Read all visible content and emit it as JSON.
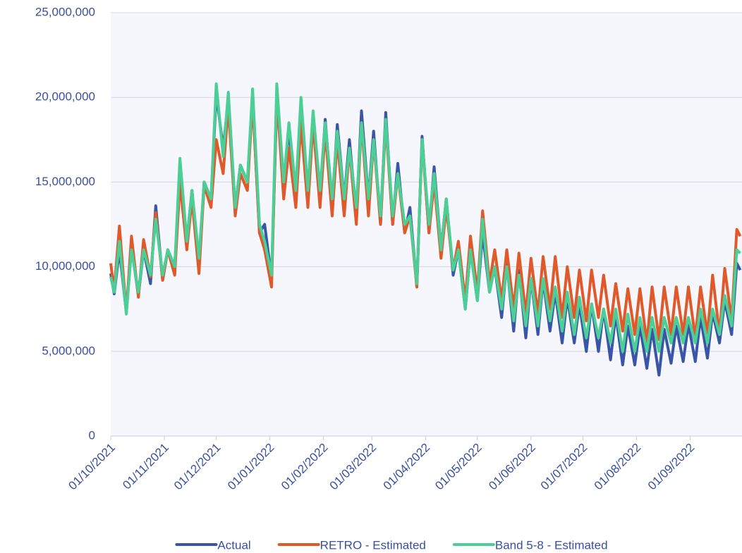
{
  "chart_data": {
    "type": "line",
    "x": [
      "01/10/2021",
      "03/10/2021",
      "06/10/2021",
      "10/10/2021",
      "13/10/2021",
      "17/10/2021",
      "20/10/2021",
      "24/10/2021",
      "27/10/2021",
      "31/10/2021",
      "03/11/2021",
      "07/11/2021",
      "10/11/2021",
      "14/11/2021",
      "17/11/2021",
      "21/11/2021",
      "24/11/2021",
      "28/11/2021",
      "01/12/2021",
      "05/12/2021",
      "08/12/2021",
      "12/12/2021",
      "15/12/2021",
      "19/12/2021",
      "22/12/2021",
      "26/12/2021",
      "29/12/2021",
      "02/01/2022",
      "05/01/2022",
      "09/01/2022",
      "12/01/2022",
      "16/01/2022",
      "19/01/2022",
      "23/01/2022",
      "26/01/2022",
      "30/01/2022",
      "02/02/2022",
      "06/02/2022",
      "09/02/2022",
      "13/02/2022",
      "16/02/2022",
      "20/02/2022",
      "23/02/2022",
      "27/02/2022",
      "02/03/2022",
      "06/03/2022",
      "09/03/2022",
      "13/03/2022",
      "16/03/2022",
      "20/03/2022",
      "23/03/2022",
      "27/03/2022",
      "30/03/2022",
      "03/04/2022",
      "06/04/2022",
      "10/04/2022",
      "13/04/2022",
      "17/04/2022",
      "20/04/2022",
      "24/04/2022",
      "27/04/2022",
      "01/05/2022",
      "04/05/2022",
      "08/05/2022",
      "11/05/2022",
      "15/05/2022",
      "18/05/2022",
      "22/05/2022",
      "25/05/2022",
      "29/05/2022",
      "01/06/2022",
      "05/06/2022",
      "08/06/2022",
      "12/06/2022",
      "15/06/2022",
      "19/06/2022",
      "22/06/2022",
      "26/06/2022",
      "29/06/2022",
      "03/07/2022",
      "06/07/2022",
      "10/07/2022",
      "13/07/2022",
      "17/07/2022",
      "20/07/2022",
      "24/07/2022",
      "27/07/2022",
      "31/07/2022",
      "03/08/2022",
      "07/08/2022",
      "10/08/2022",
      "14/08/2022",
      "17/08/2022",
      "21/08/2022",
      "24/08/2022",
      "28/08/2022",
      "31/08/2022",
      "04/09/2022",
      "07/09/2022",
      "11/09/2022",
      "14/09/2022",
      "18/09/2022",
      "21/09/2022",
      "25/09/2022",
      "28/09/2022",
      "30/09/2022"
    ],
    "series": [
      {
        "name": "Actual",
        "color": "#3a55a8",
        "values": [
          9600000,
          8400000,
          11000000,
          7300000,
          11200000,
          8300000,
          11000000,
          9000000,
          13600000,
          9200000,
          11000000,
          10000000,
          15500000,
          11500000,
          14500000,
          10000000,
          15000000,
          14000000,
          20200000,
          17000000,
          19800000,
          13500000,
          16000000,
          15000000,
          20000000,
          12000000,
          12500000,
          9300000,
          19800000,
          15000000,
          18000000,
          14500000,
          19500000,
          14000000,
          19000000,
          14000000,
          18700000,
          13500000,
          18400000,
          14000000,
          17500000,
          13000000,
          19200000,
          14000000,
          18000000,
          12500000,
          19100000,
          12500000,
          16100000,
          12000000,
          13500000,
          8800000,
          17700000,
          12000000,
          15900000,
          11000000,
          14000000,
          9500000,
          11000000,
          7500000,
          11000000,
          8000000,
          12000000,
          8500000,
          10000000,
          7000000,
          10200000,
          6200000,
          9800000,
          5800000,
          9300000,
          6000000,
          9200000,
          6200000,
          8500000,
          5500000,
          8200000,
          5500000,
          7800000,
          5000000,
          7800000,
          5000000,
          7500000,
          4500000,
          7200000,
          4200000,
          6500000,
          4200000,
          6500000,
          4000000,
          6300000,
          3600000,
          6300000,
          4300000,
          6500000,
          4400000,
          6600000,
          4400000,
          7000000,
          4600000,
          7300000,
          5500000,
          8000000,
          6000000,
          10200000,
          9800000
        ]
      },
      {
        "name": "RETRO - Estimated",
        "color": "#e0592a",
        "values": [
          10200000,
          8600000,
          12400000,
          7300000,
          11800000,
          8200000,
          11600000,
          9400000,
          13200000,
          9200000,
          11000000,
          9500000,
          15000000,
          11000000,
          14000000,
          9600000,
          14800000,
          13500000,
          17500000,
          15500000,
          19500000,
          13000000,
          15500000,
          14500000,
          19800000,
          12000000,
          11000000,
          8800000,
          20200000,
          14000000,
          17000000,
          13500000,
          18500000,
          13500000,
          18500000,
          13500000,
          18000000,
          13000000,
          17500000,
          13000000,
          17000000,
          12500000,
          18500000,
          13000000,
          17500000,
          12500000,
          18500000,
          12500000,
          15500000,
          12000000,
          13000000,
          8800000,
          17500000,
          12000000,
          15000000,
          10500000,
          13500000,
          9800000,
          11500000,
          8000000,
          11800000,
          8500000,
          13300000,
          9000000,
          11000000,
          8000000,
          11000000,
          7500000,
          10800000,
          7200000,
          10500000,
          7200000,
          10600000,
          7500000,
          10600000,
          7000000,
          10000000,
          7000000,
          9800000,
          6800000,
          9800000,
          7000000,
          9500000,
          6500000,
          9000000,
          6200000,
          8700000,
          6000000,
          8700000,
          5500000,
          8800000,
          5700000,
          8800000,
          6000000,
          8800000,
          6000000,
          8800000,
          5800000,
          8800000,
          6000000,
          9500000,
          6000000,
          9900000,
          6800000,
          12200000,
          11800000
        ]
      },
      {
        "name": "Band 5-8 - Estimated",
        "color": "#4ccf96",
        "values": [
          9400000,
          8500000,
          11500000,
          7200000,
          11000000,
          8500000,
          11000000,
          9500000,
          12800000,
          9500000,
          11000000,
          10000000,
          16400000,
          11500000,
          14500000,
          10500000,
          15000000,
          14000000,
          20800000,
          16500000,
          20300000,
          13500000,
          16000000,
          15000000,
          20500000,
          12500000,
          11500000,
          9500000,
          20800000,
          15000000,
          18500000,
          14500000,
          20000000,
          14500000,
          19200000,
          14500000,
          18500000,
          14000000,
          18000000,
          14000000,
          17000000,
          13500000,
          18500000,
          14000000,
          17500000,
          13000000,
          18700000,
          13000000,
          15500000,
          12500000,
          13000000,
          9000000,
          17500000,
          12500000,
          15500000,
          11000000,
          14000000,
          9800000,
          11000000,
          7500000,
          11000000,
          8000000,
          12800000,
          8500000,
          10000000,
          7500000,
          10000000,
          6800000,
          9500000,
          6500000,
          9300000,
          6500000,
          9300000,
          6800000,
          8800000,
          6200000,
          8500000,
          6000000,
          8200000,
          5800000,
          7800000,
          5800000,
          7500000,
          5500000,
          7500000,
          5000000,
          7200000,
          5000000,
          7000000,
          5000000,
          7000000,
          5000000,
          7000000,
          5500000,
          7000000,
          5500000,
          7000000,
          5500000,
          7500000,
          5500000,
          7500000,
          6000000,
          8300000,
          6500000,
          11000000,
          10800000
        ]
      }
    ],
    "xlim": [
      "01/10/2021",
      "30/09/2022"
    ],
    "xticks": [
      "01/10/2021",
      "01/11/2021",
      "01/12/2021",
      "01/01/2022",
      "01/02/2022",
      "01/03/2022",
      "01/04/2022",
      "01/05/2022",
      "01/06/2022",
      "01/07/2022",
      "01/08/2022",
      "01/09/2022"
    ],
    "ylim": [
      0,
      25000000
    ],
    "yticks": [
      0,
      {
        "value": 5000000,
        "label": "5,000,000"
      },
      {
        "value": 10000000,
        "label": "10,000,000"
      },
      {
        "value": 15000000,
        "label": "15,000,000"
      },
      {
        "value": 20000000,
        "label": "20,000,000"
      },
      {
        "value": 25000000,
        "label": "25,000,000"
      }
    ],
    "grid": true,
    "legend": "bottom"
  }
}
